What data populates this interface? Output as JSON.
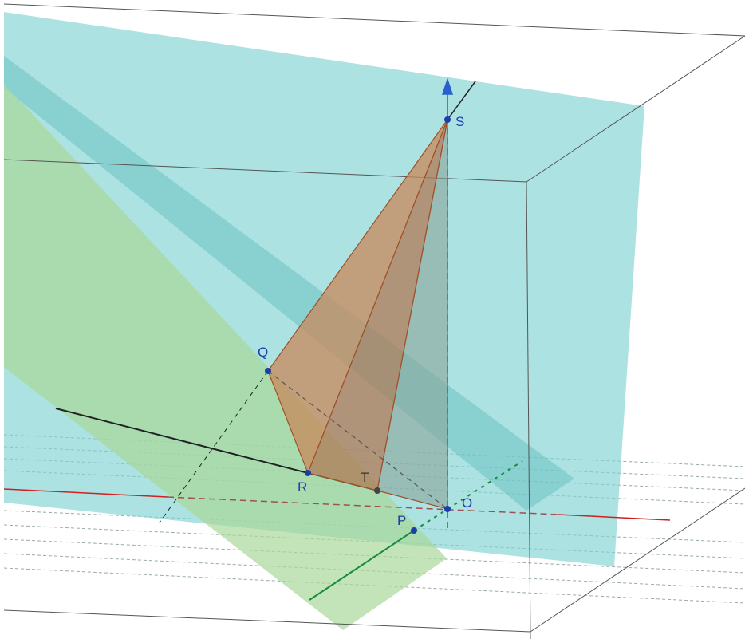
{
  "points": [
    {
      "label": "S"
    },
    {
      "label": "Q"
    },
    {
      "label": "R"
    },
    {
      "label": "T"
    },
    {
      "label": "O"
    },
    {
      "label": "P"
    }
  ]
}
